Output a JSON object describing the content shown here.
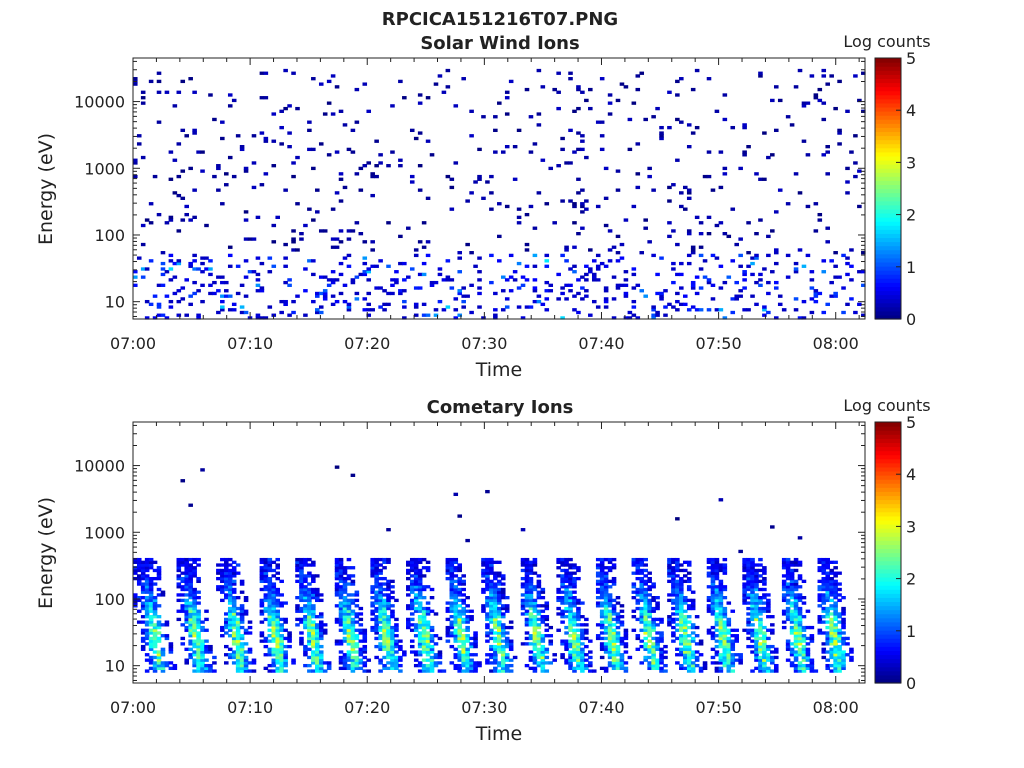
{
  "figure": {
    "title": "RPCICA151216T07.PNG"
  },
  "colors": {
    "axis": "#222222",
    "background": "#ffffff",
    "colormap": [
      "#00007f",
      "#0000ff",
      "#007fff",
      "#00ffff",
      "#7fff7f",
      "#ffff00",
      "#ff7f00",
      "#ff0000",
      "#7f0000"
    ]
  },
  "chart_data": [
    {
      "type": "heatmap",
      "title": "Solar Wind Ions",
      "xlabel": "Time",
      "ylabel": "Energy (eV)",
      "x_ticks": [
        "07:00",
        "07:10",
        "07:20",
        "07:30",
        "07:40",
        "07:50",
        "08:00"
      ],
      "x_tick_values_min": [
        0,
        10,
        20,
        30,
        40,
        50,
        60
      ],
      "xlim_min": [
        0,
        62.5
      ],
      "y_scale": "log",
      "y_ticks": [
        "10",
        "100",
        "1000",
        "10000"
      ],
      "y_tick_values": [
        10,
        100,
        1000,
        10000
      ],
      "ylim": [
        5.5,
        45000
      ],
      "colorbar": {
        "label": "Log counts",
        "ticks": [
          "0",
          "1",
          "2",
          "3",
          "4",
          "5"
        ],
        "range": [
          0,
          5
        ]
      },
      "description_bands": [
        {
          "energy_range_eV": [
            6,
            50
          ],
          "log_counts_range": [
            0,
            2
          ],
          "note": "denser low-energy band"
        },
        {
          "energy_range_eV": [
            50,
            30000
          ],
          "log_counts_range": [
            0,
            0.3
          ],
          "note": "sparse single counts"
        }
      ]
    },
    {
      "type": "heatmap",
      "title": "Cometary Ions",
      "xlabel": "Time",
      "ylabel": "Energy (eV)",
      "x_ticks": [
        "07:00",
        "07:10",
        "07:20",
        "07:30",
        "07:40",
        "07:50",
        "08:00"
      ],
      "x_tick_values_min": [
        0,
        10,
        20,
        30,
        40,
        50,
        60
      ],
      "xlim_min": [
        0,
        62.5
      ],
      "y_scale": "log",
      "y_ticks": [
        "10",
        "100",
        "1000",
        "10000"
      ],
      "y_tick_values": [
        10,
        100,
        1000,
        10000
      ],
      "ylim": [
        5.5,
        45000
      ],
      "colorbar": {
        "label": "Log counts",
        "ticks": [
          "0",
          "1",
          "2",
          "3",
          "4",
          "5"
        ],
        "range": [
          0,
          5
        ]
      },
      "burst_centers_min": [
        2.0,
        5.5,
        9.0,
        12.3,
        15.5,
        18.7,
        21.8,
        25.0,
        28.2,
        31.3,
        34.6,
        37.8,
        41.0,
        44.2,
        47.3,
        50.5,
        53.7,
        56.9,
        60.0
      ],
      "burst_energy_range_eV": [
        8,
        400
      ],
      "burst_peak_log_counts": 2.7
    }
  ]
}
